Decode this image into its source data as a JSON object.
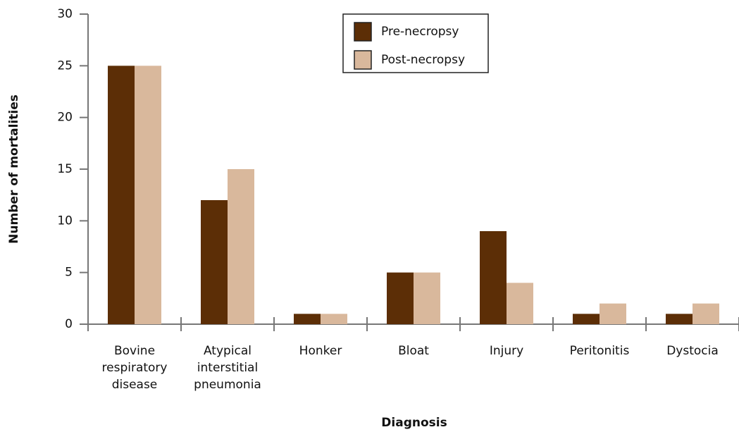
{
  "chart_data": {
    "type": "bar",
    "categories": [
      [
        "Bovine",
        "respiratory",
        "disease"
      ],
      [
        "Atypical",
        "interstitial",
        "pneumonia"
      ],
      [
        "Honker"
      ],
      [
        "Bloat"
      ],
      [
        "Injury"
      ],
      [
        "Peritonitis"
      ],
      [
        "Dystocia"
      ]
    ],
    "series": [
      {
        "name": "Pre-necropsy",
        "color": "#5c2e06",
        "values": [
          25,
          12,
          1,
          5,
          9,
          1,
          1
        ]
      },
      {
        "name": "Post-necropsy",
        "color": "#d9b89c",
        "values": [
          25,
          15,
          1,
          5,
          4,
          2,
          2
        ]
      }
    ],
    "ylim": [
      0,
      30
    ],
    "yticks": [
      0,
      5,
      10,
      15,
      20,
      25,
      30
    ],
    "xlabel": "Diagnosis",
    "ylabel": "Number of mortalities",
    "grid": false,
    "legend": "top"
  }
}
